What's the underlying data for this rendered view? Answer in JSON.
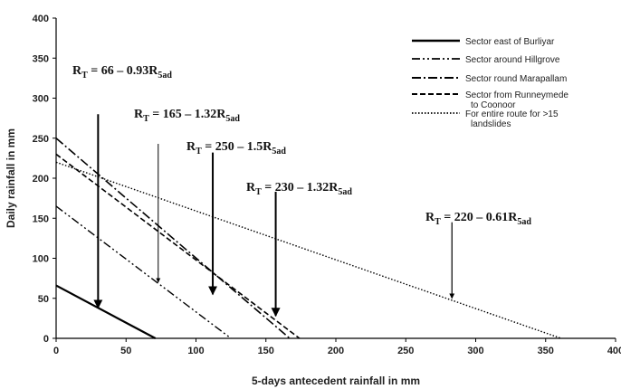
{
  "chart_data": {
    "type": "line",
    "xlabel": "5-days antecedent rainfall in mm",
    "ylabel": "Daily rainfall in mm",
    "xlim": [
      0,
      400
    ],
    "ylim": [
      0,
      400
    ],
    "x_ticks": [
      "0",
      "50",
      "100",
      "150",
      "200",
      "250",
      "300",
      "350",
      "400"
    ],
    "y_ticks": [
      "0",
      "50",
      "100",
      "150",
      "200",
      "250",
      "300",
      "350",
      "400"
    ],
    "grid": false,
    "legend_position": "top-right",
    "series": [
      {
        "name": "Sector east of Burliyar",
        "intercept": 66,
        "slope": -0.93,
        "x": [
          0,
          71
        ],
        "y": [
          66,
          0
        ],
        "style": "solid",
        "width": 2.2,
        "color": "#000000"
      },
      {
        "name": "Sector around Hillgrove",
        "intercept": 165,
        "slope": -1.32,
        "x": [
          0,
          125
        ],
        "y": [
          165,
          0
        ],
        "style": "dashdotdot",
        "width": 1.4,
        "color": "#000000"
      },
      {
        "name": "Sector round Marapallam",
        "intercept": 250,
        "slope": -1.5,
        "x": [
          0,
          167
        ],
        "y": [
          250,
          0
        ],
        "style": "dashdot",
        "width": 1.6,
        "color": "#000000"
      },
      {
        "name": "Sector from Runneymede\nto Coonoor",
        "intercept": 230,
        "slope": -1.32,
        "x": [
          0,
          174
        ],
        "y": [
          230,
          0
        ],
        "style": "dashed",
        "width": 1.6,
        "color": "#000000"
      },
      {
        "name": "For entire route for >15\nlandslides",
        "intercept": 220,
        "slope": -0.61,
        "x": [
          0,
          361
        ],
        "y": [
          220,
          0
        ],
        "style": "dotted",
        "width": 1.4,
        "color": "#000000"
      }
    ],
    "annotations": [
      {
        "label": "R",
        "sub": "T",
        "formula": " = 66 – 0.93R",
        "sub2": "5ad",
        "arrow_x": 30,
        "arrow_from_y": 280,
        "arrow_to_y": 38,
        "arrow_width": 2
      },
      {
        "label": "R",
        "sub": "T",
        "formula": " = 165 – 1.32R",
        "sub2": "5ad",
        "arrow_x": 73,
        "arrow_from_y": 243,
        "arrow_to_y": 70,
        "arrow_width": 1
      },
      {
        "label": "R",
        "sub": "T",
        "formula": " = 250 – 1.5R",
        "sub2": "5ad",
        "arrow_x": 112,
        "arrow_from_y": 232,
        "arrow_to_y": 55,
        "arrow_width": 2
      },
      {
        "label": "R",
        "sub": "T",
        "formula": " = 230 – 1.32R",
        "sub2": "5ad",
        "arrow_x": 157,
        "arrow_from_y": 183,
        "arrow_to_y": 28,
        "arrow_width": 2
      },
      {
        "label": "R",
        "sub": "T",
        "formula": " = 220 – 0.61R",
        "sub2": "5ad",
        "arrow_x": 283,
        "arrow_from_y": 145,
        "arrow_to_y": 50,
        "arrow_width": 1.2
      }
    ]
  }
}
